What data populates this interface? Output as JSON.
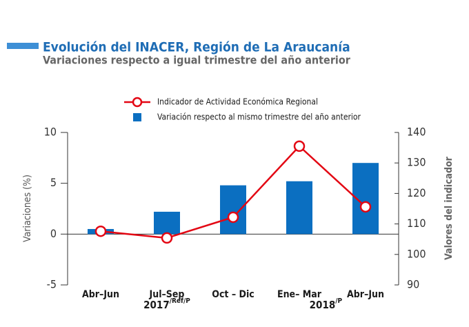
{
  "chart_data": {
    "type": "bar_line",
    "title": "Evolución del INACER, Región de La Araucanía",
    "subtitle": "Variaciones respecto a igual trimestre del año anterior",
    "categories": [
      "Abr–Jun",
      "Jul–Sep",
      "Oct – Dic",
      "Ene– Mar",
      "Abr–Jun"
    ],
    "groups": [
      {
        "label": "2017",
        "suffix": "/Ref/P"
      },
      {
        "label": "2018",
        "suffix": "/P"
      }
    ],
    "series": [
      {
        "name": "Variación respecto al mismo trimestre del año anterior",
        "type": "bar",
        "axis": "y",
        "color": "#0b6fc1",
        "values": [
          0.5,
          2.2,
          4.8,
          5.2,
          7.0
        ]
      },
      {
        "name": "Indicador de Actividad Económica Regional",
        "type": "line",
        "axis": "y2",
        "color": "#e30613",
        "values": [
          107.6,
          105.4,
          112.2,
          135.5,
          115.6
        ]
      }
    ],
    "ylabel": "Variaciones (%)",
    "y2label": "Valores del indicador",
    "ylim": [
      -5,
      10
    ],
    "yticks": [
      -5,
      0,
      5,
      10
    ],
    "y2lim": [
      90,
      140
    ],
    "y2ticks": [
      90,
      100,
      110,
      120,
      130,
      140
    ]
  }
}
